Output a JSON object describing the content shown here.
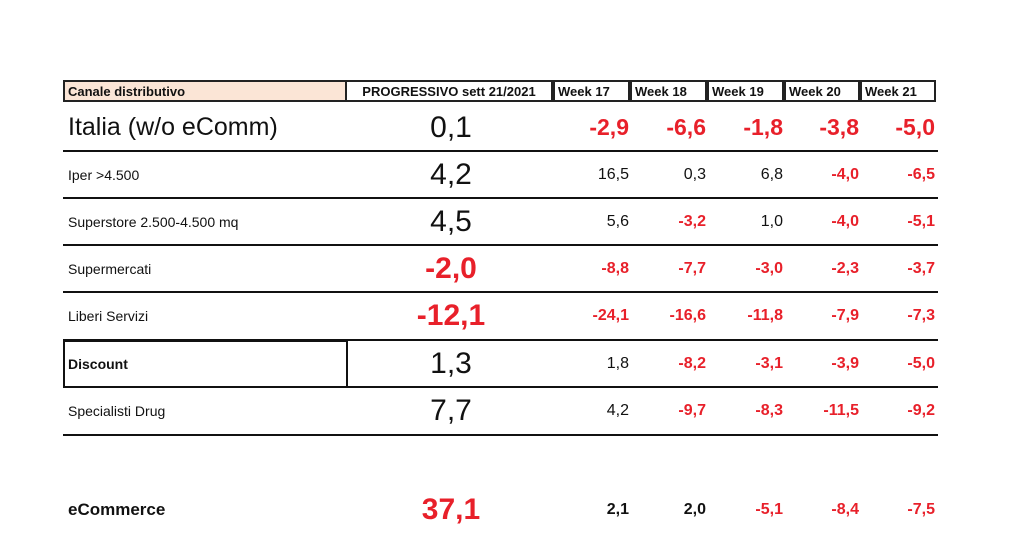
{
  "table": {
    "header": [
      "Canale distributivo",
      "PROGRESSIVO sett 21/2021",
      "Week 17",
      "Week 18",
      "Week 19",
      "Week 20",
      "Week 21"
    ],
    "rows": [
      [
        "Italia (w/o eComm)",
        "0,1",
        "-2,9",
        "-6,6",
        "-1,8",
        "-3,8",
        "-5,0"
      ],
      [
        "Iper >4.500",
        "4,2",
        "16,5",
        "0,3",
        "6,8",
        "-4,0",
        "-6,5"
      ],
      [
        "Superstore 2.500-4.500 mq",
        "4,5",
        "5,6",
        "-3,2",
        "1,0",
        "-4,0",
        "-5,1"
      ],
      [
        "Supermercati",
        "-2,0",
        "-8,8",
        "-7,7",
        "-3,0",
        "-2,3",
        "-3,7"
      ],
      [
        "Liberi Servizi",
        "-12,1",
        "-24,1",
        "-16,6",
        "-11,8",
        "-7,9",
        "-7,3"
      ],
      [
        "Discount",
        "1,3",
        "1,8",
        "-8,2",
        "-3,1",
        "-3,9",
        "-5,0"
      ],
      [
        "Specialisti Drug",
        "7,7",
        "4,2",
        "-9,7",
        "-8,3",
        "-11,5",
        "-9,2"
      ],
      [
        "eCommerce",
        "37,1",
        "2,1",
        "2,0",
        "-5,1",
        "-8,4",
        "-7,5"
      ]
    ]
  }
}
